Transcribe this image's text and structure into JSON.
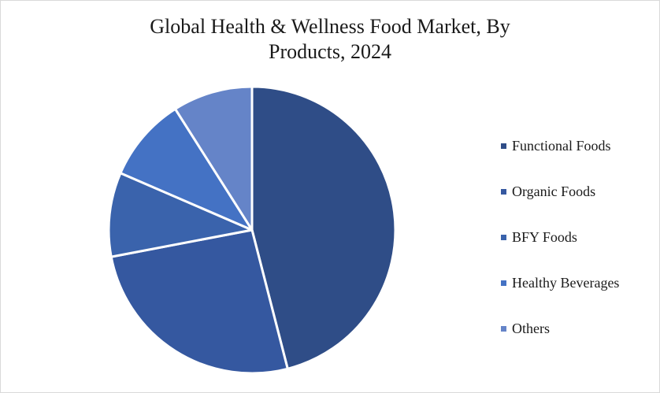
{
  "chart_data": {
    "type": "pie",
    "title": "Global Health & Wellness Food Market, By Products, 2024",
    "title_lines": [
      "Global Health & Wellness Food Market, By",
      "Products, 2024"
    ],
    "categories": [
      "Functional Foods",
      "Organic Foods",
      "BFY Foods",
      "Healthy Beverages",
      "Others"
    ],
    "values": [
      46,
      26,
      9.5,
      9.5,
      9
    ],
    "colors": [
      "#2f4d87",
      "#3558a0",
      "#3a63ac",
      "#4472c4",
      "#6584c8"
    ],
    "legend_position": "right",
    "start_angle_deg": 0,
    "direction": "clockwise"
  }
}
